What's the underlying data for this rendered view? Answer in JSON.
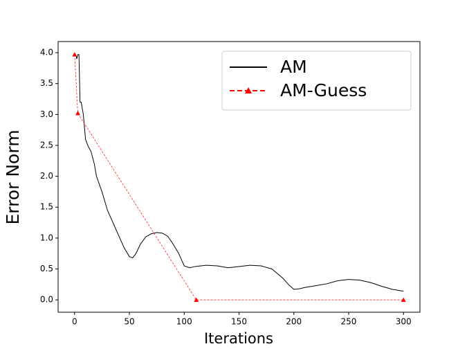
{
  "chart_data": {
    "type": "line",
    "xlabel": "Iterations",
    "ylabel": "Error Norm",
    "xlim": [
      -15,
      315
    ],
    "ylim": [
      -0.2,
      4.18
    ],
    "xticks": [
      0,
      50,
      100,
      150,
      200,
      250,
      300
    ],
    "yticks": [
      {
        "value": 0,
        "label": "0.0"
      },
      0.5,
      {
        "value": 1,
        "label": "1.0"
      },
      1.5,
      {
        "value": 2,
        "label": "2.0"
      },
      2.5,
      {
        "value": 3,
        "label": "3.0"
      },
      3.5,
      {
        "value": 4,
        "label": "4.0"
      }
    ],
    "legend": "upper right",
    "series": [
      {
        "name": "AM",
        "color": "#000000",
        "style": "solid",
        "x": [
          0,
          1,
          2,
          3,
          4,
          5,
          6,
          7,
          8,
          10,
          12,
          15,
          18,
          20,
          25,
          30,
          35,
          40,
          45,
          50,
          53,
          56,
          60,
          65,
          70,
          75,
          80,
          85,
          90,
          95,
          100,
          105,
          110,
          120,
          130,
          140,
          150,
          160,
          170,
          180,
          190,
          195,
          200,
          205,
          210,
          220,
          230,
          240,
          250,
          260,
          270,
          280,
          290,
          300
        ],
        "values": [
          3.97,
          3.97,
          3.9,
          3.97,
          3.97,
          3.2,
          3.2,
          3.1,
          3.0,
          2.6,
          2.5,
          2.4,
          2.2,
          2.0,
          1.75,
          1.45,
          1.25,
          1.05,
          0.85,
          0.7,
          0.68,
          0.75,
          0.9,
          1.02,
          1.07,
          1.09,
          1.08,
          1.03,
          0.9,
          0.75,
          0.55,
          0.52,
          0.54,
          0.56,
          0.55,
          0.52,
          0.54,
          0.56,
          0.55,
          0.5,
          0.35,
          0.25,
          0.17,
          0.18,
          0.2,
          0.23,
          0.26,
          0.31,
          0.33,
          0.32,
          0.28,
          0.22,
          0.17,
          0.14
        ]
      },
      {
        "name": "AM-Guess",
        "color": "#ff0000",
        "style": "dashed",
        "marker": "triangle",
        "x": [
          0,
          3,
          111,
          300
        ],
        "values": [
          3.97,
          3.02,
          0,
          0
        ]
      }
    ]
  }
}
